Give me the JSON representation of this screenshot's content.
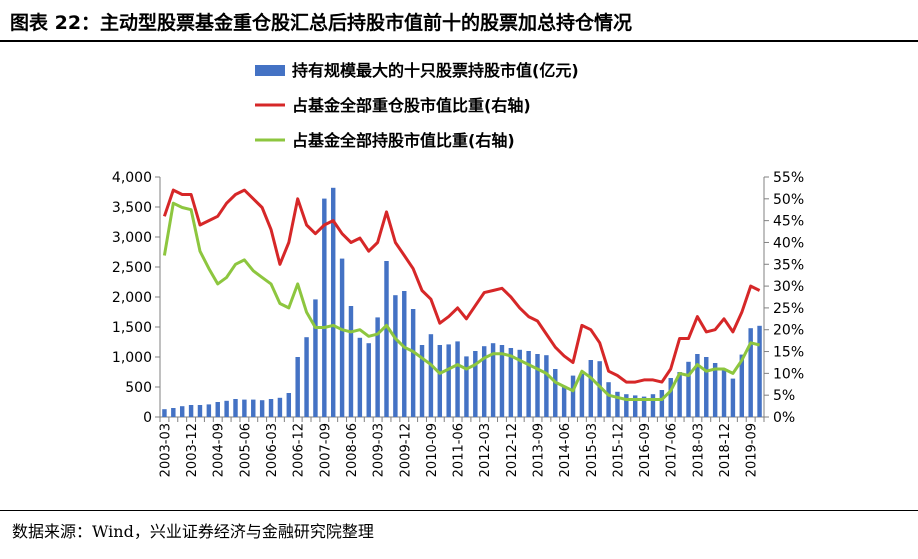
{
  "title": "图表 22：主动型股票基金重仓股汇总后持股市值前十的股票加总持仓情况",
  "source": "数据来源：Wind，兴业证券经济与金融研究院整理",
  "colors": {
    "bar": "#4472C4",
    "heavy_line": "#D62728",
    "all_line": "#8DC63F",
    "axis": "#808080"
  },
  "chart_data": {
    "type": "bar+line",
    "title": "图表 22：主动型股票基金重仓股汇总后持股市值前十的股票加总持仓情况",
    "legend": [
      "持有规模最大的十只股票持股市值(亿元)",
      "占基金全部重仓股市值比重(右轴)",
      "占基金全部持股市值比重(右轴)"
    ],
    "legend_position": "top-center",
    "left_axis": {
      "min": 0,
      "max": 4000,
      "ticks": [
        "0",
        "500",
        "1,000",
        "1,500",
        "2,000",
        "2,500",
        "3,000",
        "3,500",
        "4,000"
      ]
    },
    "right_axis": {
      "min": 0,
      "max": 55,
      "ticks": [
        "0%",
        "5%",
        "10%",
        "15%",
        "20%",
        "25%",
        "30%",
        "35%",
        "40%",
        "45%",
        "50%",
        "55%"
      ]
    },
    "x_tick_labels": [
      "2003-03",
      "2003-12",
      "2004-09",
      "2005-06",
      "2006-03",
      "2006-12",
      "2007-09",
      "2008-06",
      "2009-03",
      "2009-12",
      "2010-09",
      "2011-06",
      "2012-03",
      "2012-12",
      "2013-09",
      "2014-06",
      "2015-03",
      "2015-12",
      "2016-09",
      "2017-06",
      "2018-03",
      "2018-12",
      "2019-09"
    ],
    "categories": [
      "2003-03",
      "2003-06",
      "2003-09",
      "2003-12",
      "2004-03",
      "2004-06",
      "2004-09",
      "2004-12",
      "2005-03",
      "2005-06",
      "2005-09",
      "2005-12",
      "2006-03",
      "2006-06",
      "2006-09",
      "2006-12",
      "2007-03",
      "2007-06",
      "2007-09",
      "2007-12",
      "2008-03",
      "2008-06",
      "2008-09",
      "2008-12",
      "2009-03",
      "2009-06",
      "2009-09",
      "2009-12",
      "2010-03",
      "2010-06",
      "2010-09",
      "2010-12",
      "2011-03",
      "2011-06",
      "2011-09",
      "2011-12",
      "2012-03",
      "2012-06",
      "2012-09",
      "2012-12",
      "2013-03",
      "2013-06",
      "2013-09",
      "2013-12",
      "2014-03",
      "2014-06",
      "2014-09",
      "2014-12",
      "2015-03",
      "2015-06",
      "2015-09",
      "2015-12",
      "2016-03",
      "2016-06",
      "2016-09",
      "2016-12",
      "2017-03",
      "2017-06",
      "2017-09",
      "2017-12",
      "2018-03",
      "2018-06",
      "2018-09",
      "2018-12",
      "2019-03",
      "2019-06",
      "2019-09",
      "2019-12"
    ],
    "series": [
      {
        "name": "持有规模最大的十只股票持股市值(亿元)",
        "type": "bar",
        "axis": "left",
        "values": [
          130,
          150,
          180,
          200,
          200,
          210,
          250,
          270,
          300,
          290,
          290,
          280,
          300,
          320,
          400,
          1000,
          1330,
          1960,
          3640,
          3820,
          2640,
          1850,
          1320,
          1230,
          1660,
          2600,
          2030,
          2100,
          1800,
          1200,
          1380,
          1200,
          1210,
          1260,
          1010,
          1100,
          1180,
          1230,
          1200,
          1150,
          1120,
          1100,
          1050,
          1030,
          800,
          520,
          690,
          720,
          950,
          930,
          580,
          420,
          380,
          360,
          340,
          380,
          450,
          650,
          750,
          920,
          1050,
          1000,
          900,
          800,
          640,
          1040,
          1480,
          1520
        ]
      },
      {
        "name": "占基金全部重仓股市值比重(右轴)",
        "type": "line",
        "axis": "right",
        "values": [
          46,
          52,
          51,
          51,
          44,
          45,
          46,
          49,
          51,
          52,
          50,
          48,
          43,
          35,
          40,
          50,
          44,
          42,
          44,
          45,
          42,
          40,
          41,
          38,
          40,
          47,
          40,
          37,
          34,
          29,
          27,
          21.5,
          23,
          25,
          22.5,
          25.5,
          28.5,
          29,
          29.5,
          27.5,
          25,
          23,
          22,
          19,
          16,
          14,
          12.5,
          21,
          20,
          17,
          10.5,
          9.5,
          8,
          8,
          8.5,
          8.5,
          8,
          11,
          18,
          18,
          23,
          19.5,
          20,
          22.5,
          19.5,
          24,
          30,
          29
        ]
      },
      {
        "name": "占基金全部持股市值比重(右轴)",
        "type": "line",
        "axis": "right",
        "values": [
          37,
          49,
          48,
          47.5,
          38,
          34,
          30.5,
          32,
          35,
          36,
          33.5,
          32,
          30.5,
          26,
          25,
          30.5,
          24,
          20.5,
          20.5,
          21,
          20,
          19.5,
          20,
          18.5,
          19,
          21,
          18,
          16,
          15,
          13.5,
          12,
          10,
          11,
          12,
          11,
          12,
          13.5,
          14.5,
          14.5,
          14,
          13,
          12,
          11,
          10,
          8,
          7,
          6,
          10.5,
          9,
          7,
          5,
          4.5,
          4,
          4,
          4,
          4,
          4,
          6,
          10,
          9.5,
          12,
          10.5,
          11,
          11,
          10,
          13,
          17,
          16.5
        ]
      }
    ]
  }
}
